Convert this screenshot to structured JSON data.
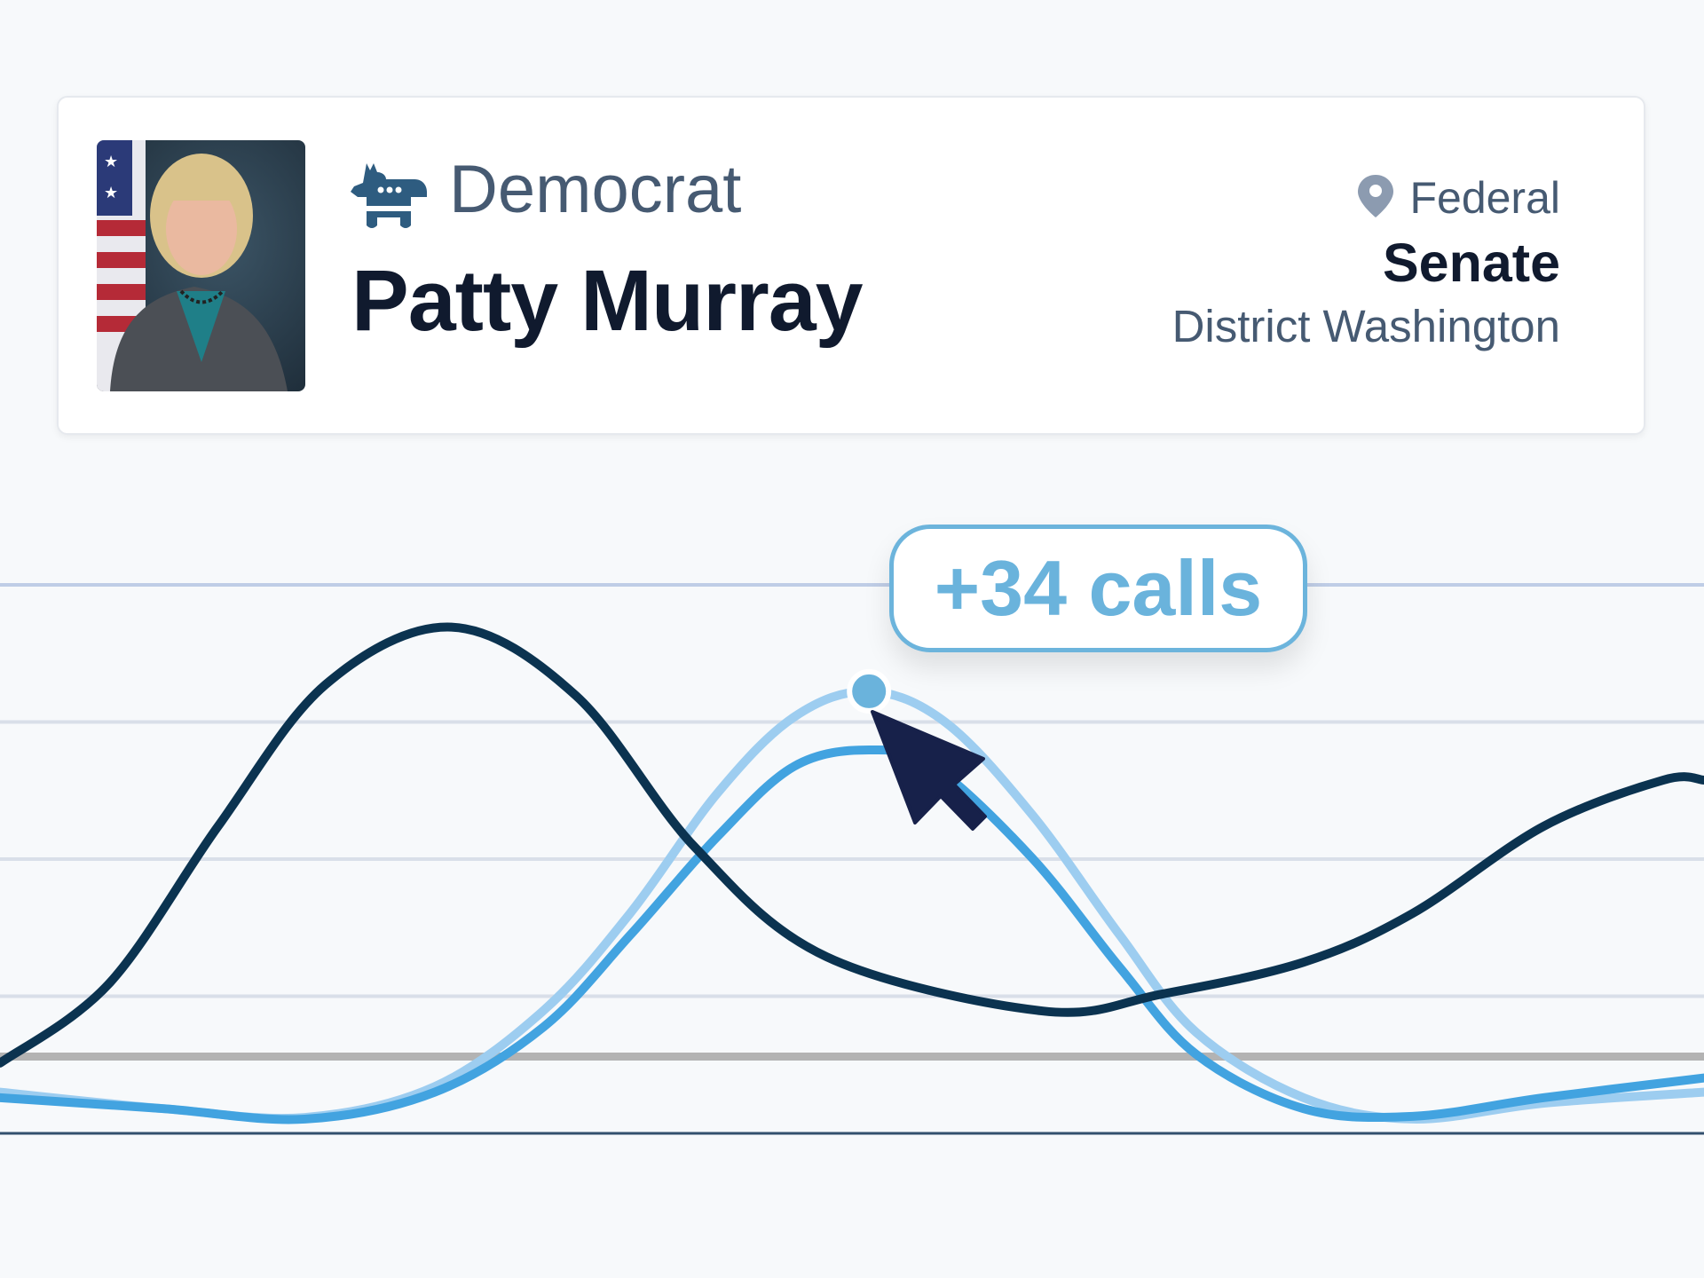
{
  "profile": {
    "party": "Democrat",
    "party_icon": "donkey-icon",
    "name": "Patty Murray",
    "level": "Federal",
    "level_icon": "map-pin-icon",
    "chamber": "Senate",
    "district": "District Washington",
    "photo_alt": "portrait"
  },
  "tooltip": {
    "label": "+34 calls"
  },
  "colors": {
    "background": "#f7f9fb",
    "party": "#2e5c80",
    "series_dark": "#0b3350",
    "series_light": "#9dcdf0",
    "series_mid": "#42a3e0",
    "accent": "#6cb4dc",
    "cursor": "#17214a"
  },
  "chart_data": {
    "type": "line",
    "title": "",
    "xlabel": "",
    "ylabel": "",
    "xlim": [
      0,
      100
    ],
    "ylim": [
      0,
      100
    ],
    "grid": true,
    "gridlines": [
      25,
      50,
      75,
      100
    ],
    "reference_line": 14,
    "highlight": {
      "series": 1,
      "x": 51,
      "y": 80.6,
      "label": "+34 calls"
    },
    "series": [
      {
        "color": "#0b3350",
        "x": [
          0,
          6.4,
          12.8,
          19.1,
          26.5,
          33.8,
          40.8,
          48.5,
          61.2,
          68.2,
          76.5,
          82.9,
          90.6,
          97.6,
          100
        ],
        "y": [
          12.8,
          27.3,
          56,
          81.8,
          92.3,
          79.8,
          52.1,
          32.2,
          22.3,
          25.4,
          31.2,
          40.1,
          56,
          64.4,
          64.4
        ]
      },
      {
        "color": "#9dcdf0",
        "x": [
          0,
          9.6,
          17.9,
          25.5,
          31.9,
          37,
          42.1,
          46.6,
          51,
          55.5,
          60.6,
          65.7,
          70.2,
          76.5,
          82.9,
          90.6,
          100
        ],
        "y": [
          7.5,
          4.5,
          2.9,
          8.5,
          22.4,
          40.2,
          62,
          75.9,
          80.6,
          74.9,
          58,
          36.2,
          18.4,
          6.5,
          2.6,
          5.5,
          7.5
        ]
      },
      {
        "color": "#42a3e0",
        "x": [
          0,
          9.6,
          17.9,
          25.5,
          31.9,
          37,
          42.1,
          46.6,
          51,
          54.8,
          60.6,
          65.7,
          70.2,
          76.5,
          82.9,
          90.6,
          100
        ],
        "y": [
          6.5,
          4.5,
          2.6,
          7.5,
          19.4,
          36.2,
          54.1,
          66.9,
          69.9,
          66.9,
          50.1,
          30.3,
          14.4,
          4.5,
          3.1,
          6.5,
          10.1
        ]
      }
    ]
  }
}
